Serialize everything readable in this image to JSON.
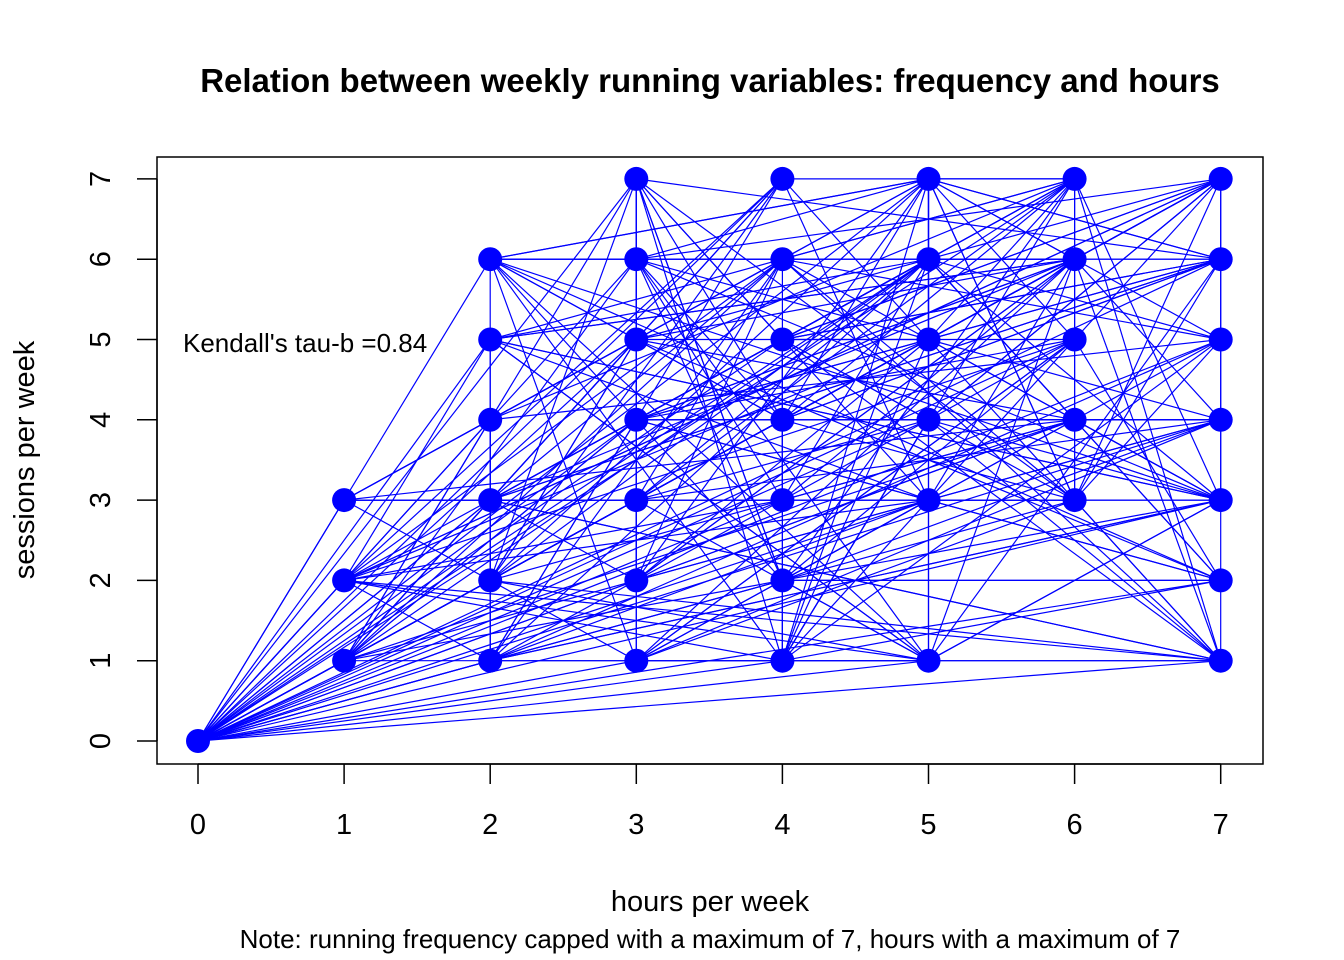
{
  "chart_data": {
    "type": "scatter",
    "title": "Relation between weekly running variables: frequency and hours",
    "xlabel": "hours per week",
    "ylabel": "sessions per week",
    "note": "Note: running frequency capped with a maximum of 7, hours with a maximum of 7",
    "annotation": "Kendall's tau-b =0.84",
    "xlim": [
      0,
      7
    ],
    "ylim": [
      0,
      7
    ],
    "x_ticks": [
      0,
      1,
      2,
      3,
      4,
      5,
      6,
      7
    ],
    "y_ticks": [
      0,
      1,
      2,
      3,
      4,
      5,
      6,
      7
    ],
    "grid": false,
    "color": "#0000ff",
    "points": [
      [
        0,
        0
      ],
      [
        1,
        1
      ],
      [
        1,
        2
      ],
      [
        1,
        3
      ],
      [
        2,
        1
      ],
      [
        2,
        2
      ],
      [
        2,
        3
      ],
      [
        2,
        4
      ],
      [
        2,
        5
      ],
      [
        2,
        6
      ],
      [
        3,
        1
      ],
      [
        3,
        2
      ],
      [
        3,
        3
      ],
      [
        3,
        4
      ],
      [
        3,
        5
      ],
      [
        3,
        6
      ],
      [
        3,
        7
      ],
      [
        4,
        1
      ],
      [
        4,
        2
      ],
      [
        4,
        3
      ],
      [
        4,
        4
      ],
      [
        4,
        5
      ],
      [
        4,
        6
      ],
      [
        4,
        7
      ],
      [
        5,
        1
      ],
      [
        5,
        3
      ],
      [
        5,
        4
      ],
      [
        5,
        5
      ],
      [
        5,
        6
      ],
      [
        5,
        7
      ],
      [
        6,
        3
      ],
      [
        6,
        4
      ],
      [
        6,
        5
      ],
      [
        6,
        6
      ],
      [
        6,
        7
      ],
      [
        7,
        1
      ],
      [
        7,
        2
      ],
      [
        7,
        3
      ],
      [
        7,
        4
      ],
      [
        7,
        5
      ],
      [
        7,
        6
      ],
      [
        7,
        7
      ]
    ]
  }
}
